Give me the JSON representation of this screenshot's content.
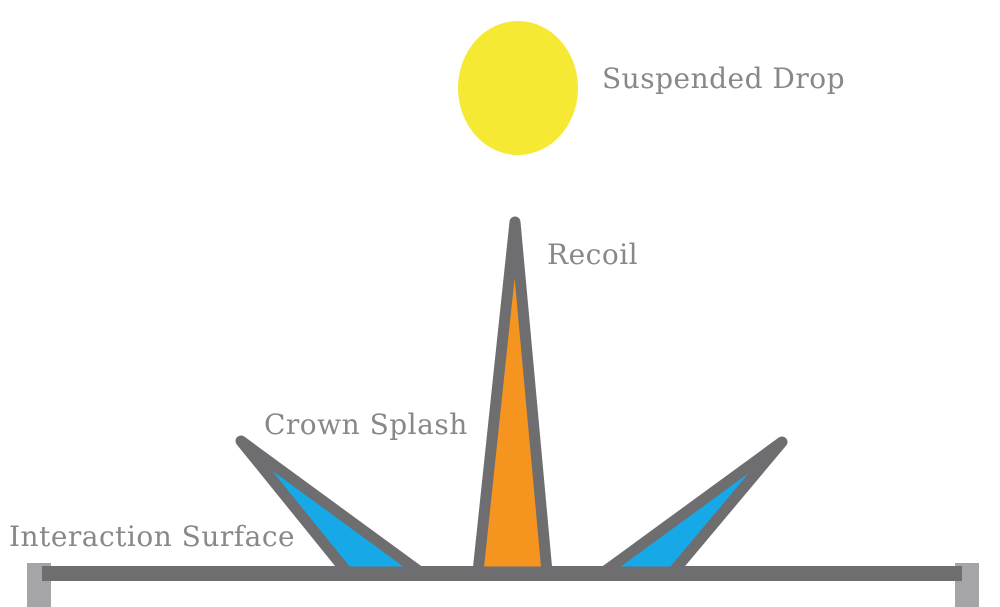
{
  "diagram": {
    "labels": {
      "drop": "Suspended Drop",
      "recoil": "Recoil",
      "crown": "Crown Splash",
      "surface": "Interaction Surface"
    },
    "colors": {
      "drop": "#f5e933",
      "recoil": "#f5941f",
      "crown": "#17a8e8",
      "outline": "#6e6e70",
      "posts": "#a5a5a8",
      "text": "#888888",
      "background": "#ffffff"
    }
  }
}
